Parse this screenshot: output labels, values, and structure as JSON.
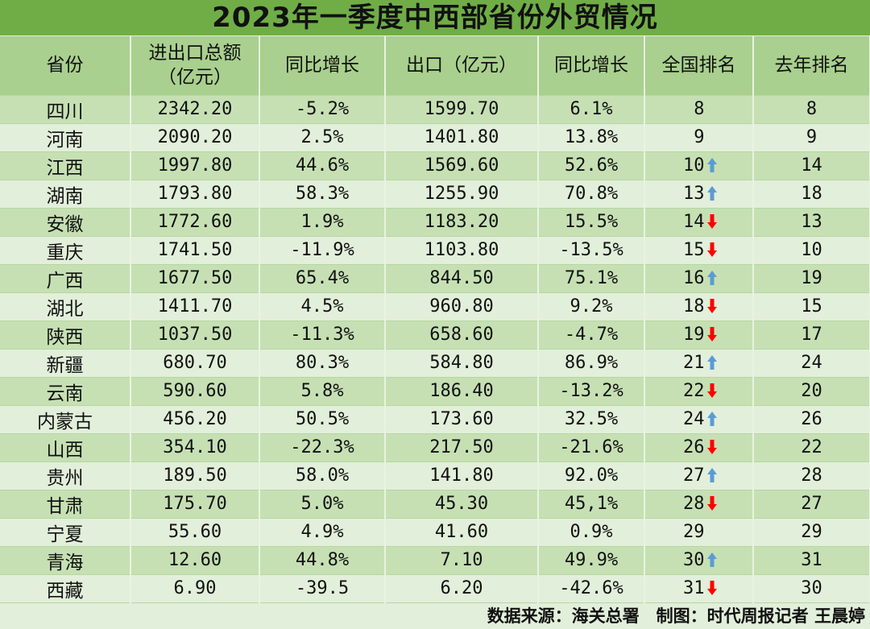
{
  "title": "2023年一季度中西部省份外贸情况",
  "headers": [
    "省份",
    "进出口总额\n（亿元）",
    "同比增长",
    "出口（亿元）",
    "同比增长",
    "全国排名",
    "去年排名"
  ],
  "header_lines": {
    "total_1": "进出口总额",
    "total_2": "（亿元）"
  },
  "colors": {
    "title_bg": "#70ad47",
    "header_bg": "#a9d08e",
    "row_odd": "#c6e0b4",
    "row_even": "#e2efda",
    "up_arrow": "#5b9bd5",
    "down_arrow": "#ff0000"
  },
  "rows": [
    {
      "province": "四川",
      "total": "2342.20",
      "total_growth": "-5.2%",
      "export": "1599.70",
      "export_growth": "6.1%",
      "rank": "8",
      "trend": "none",
      "last_rank": "8"
    },
    {
      "province": "河南",
      "total": "2090.20",
      "total_growth": "2.5%",
      "export": "1401.80",
      "export_growth": "13.8%",
      "rank": "9",
      "trend": "none",
      "last_rank": "9"
    },
    {
      "province": "江西",
      "total": "1997.80",
      "total_growth": "44.6%",
      "export": "1569.60",
      "export_growth": "52.6%",
      "rank": "10",
      "trend": "up",
      "last_rank": "14"
    },
    {
      "province": "湖南",
      "total": "1793.80",
      "total_growth": "58.3%",
      "export": "1255.90",
      "export_growth": "70.8%",
      "rank": "13",
      "trend": "up",
      "last_rank": "18"
    },
    {
      "province": "安徽",
      "total": "1772.60",
      "total_growth": "1.9%",
      "export": "1183.20",
      "export_growth": "15.5%",
      "rank": "14",
      "trend": "down",
      "last_rank": "13"
    },
    {
      "province": "重庆",
      "total": "1741.50",
      "total_growth": "-11.9%",
      "export": "1103.80",
      "export_growth": "-13.5%",
      "rank": "15",
      "trend": "down",
      "last_rank": "10"
    },
    {
      "province": "广西",
      "total": "1677.50",
      "total_growth": "65.4%",
      "export": "844.50",
      "export_growth": "75.1%",
      "rank": "16",
      "trend": "up",
      "last_rank": "19"
    },
    {
      "province": "湖北",
      "total": "1411.70",
      "total_growth": "4.5%",
      "export": "960.80",
      "export_growth": "9.2%",
      "rank": "18",
      "trend": "down",
      "last_rank": "15"
    },
    {
      "province": "陕西",
      "total": "1037.50",
      "total_growth": "-11.3%",
      "export": "658.60",
      "export_growth": "-4.7%",
      "rank": "19",
      "trend": "down",
      "last_rank": "17"
    },
    {
      "province": "新疆",
      "total": "680.70",
      "total_growth": "80.3%",
      "export": "584.80",
      "export_growth": "86.9%",
      "rank": "21",
      "trend": "up",
      "last_rank": "24"
    },
    {
      "province": "云南",
      "total": "590.60",
      "total_growth": "5.8%",
      "export": "186.40",
      "export_growth": "-13.2%",
      "rank": "22",
      "trend": "down",
      "last_rank": "20"
    },
    {
      "province": "内蒙古",
      "total": "456.20",
      "total_growth": "50.5%",
      "export": "173.60",
      "export_growth": "32.5%",
      "rank": "24",
      "trend": "up",
      "last_rank": "26"
    },
    {
      "province": "山西",
      "total": "354.10",
      "total_growth": "-22.3%",
      "export": "217.50",
      "export_growth": "-21.6%",
      "rank": "26",
      "trend": "down",
      "last_rank": "22"
    },
    {
      "province": "贵州",
      "total": "189.50",
      "total_growth": "58.0%",
      "export": "141.80",
      "export_growth": "92.0%",
      "rank": "27",
      "trend": "up",
      "last_rank": "28"
    },
    {
      "province": "甘肃",
      "total": "175.70",
      "total_growth": "5.0%",
      "export": "45.30",
      "export_growth": "45,1%",
      "rank": "28",
      "trend": "down",
      "last_rank": "27"
    },
    {
      "province": "宁夏",
      "total": "55.60",
      "total_growth": "4.9%",
      "export": "41.60",
      "export_growth": "0.9%",
      "rank": "29",
      "trend": "none",
      "last_rank": "29"
    },
    {
      "province": "青海",
      "total": "12.60",
      "total_growth": "44.8%",
      "export": "7.10",
      "export_growth": "49.9%",
      "rank": "30",
      "trend": "up",
      "last_rank": "31"
    },
    {
      "province": "西藏",
      "total": "6.90",
      "total_growth": "-39.5",
      "export": "6.20",
      "export_growth": "-42.6%",
      "rank": "31",
      "trend": "down",
      "last_rank": "30"
    }
  ],
  "footer": "数据来源：海关总署　制图：时代周报记者 王晨婷"
}
